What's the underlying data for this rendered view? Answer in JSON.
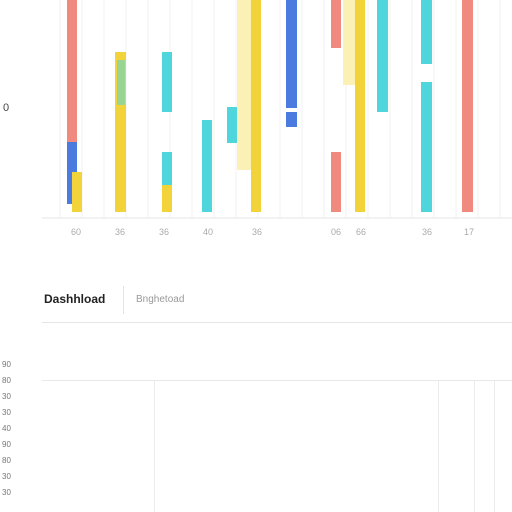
{
  "chart_data": {
    "type": "bar",
    "left_axis_label": "0",
    "x_tick_labels": [
      "60",
      "36",
      "36",
      "40",
      "36",
      "06",
      "66",
      "36",
      "17"
    ],
    "colors": {
      "red": "#f08a7e",
      "blue": "#4c7be0",
      "yellow": "#f2d43a",
      "light_yellow": "#fbf1b5",
      "cyan": "#4fd6dc"
    }
  },
  "tabs": {
    "active_label": "Dashhload",
    "inactive_label": "Bnghetoad"
  },
  "row_labels": [
    "90",
    "80",
    "30",
    "30",
    "40",
    "90",
    "80",
    "30",
    "30"
  ]
}
